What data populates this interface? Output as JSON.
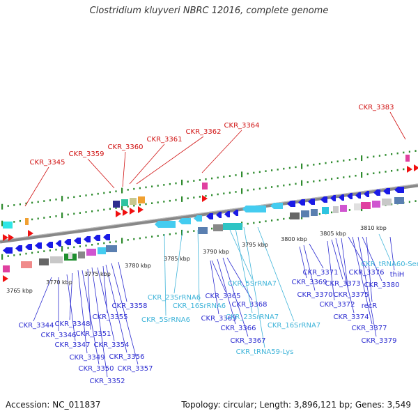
{
  "title": "Clostridium kluyveri NBRC 12016, complete genome",
  "footer": {
    "accession": "Accession: NC_011837",
    "summary": "Topology: circular; Length: 3,896,121 bp; Genes: 3,549"
  },
  "colors": {
    "cds_label": "#2a2ad0",
    "rna_label": "#3fb4d9",
    "highlight_label": "#d01010",
    "backbone": "#888888",
    "tick": "#2e8b2e"
  },
  "scale_labels": [
    "3765 kbp",
    "3770 kbp",
    "3775 kbp",
    "3780 kbp",
    "3785 kbp",
    "3790 kbp",
    "3795 kbp",
    "3800 kbp",
    "3805 kbp",
    "3810 kbp"
  ],
  "highlighted_genes": [
    "CKR_3345",
    "CKR_3359",
    "CKR_3360",
    "CKR_3361",
    "CKR_3362",
    "CKR_3364",
    "CKR_3383"
  ],
  "gene_labels": [
    "CKR_3344",
    "CKR_3346",
    "CKR_3347",
    "CKR_3348",
    "CKR_3349",
    "CKR_3350",
    "CKR_3351",
    "CKR_3352",
    "CKR_3354",
    "CKR_3355",
    "CKR_3356",
    "CKR_3357",
    "CKR_3358",
    "CKR_3363",
    "CKR_3365",
    "CKR_3366",
    "CKR_3367",
    "CKR_3368",
    "CKR_3369",
    "CKR_3370",
    "CKR_3371",
    "CKR_3372",
    "CKR_3373",
    "CKR_3374",
    "CKR_3375",
    "CKR_3376",
    "CKR_3377",
    "CKR_3379",
    "CKR_3380",
    "recR",
    "thiH"
  ],
  "rna_labels": [
    "CKR_5SrRNA6",
    "CKR_23SrRNA6",
    "CKR_16SrRNA6",
    "CKR_5SrRNA7",
    "CKR_23SrRNA7",
    "CKR_16SrRNA7",
    "CKR_tRNA59-Lys",
    "CKR_tRNA60-Ser"
  ]
}
